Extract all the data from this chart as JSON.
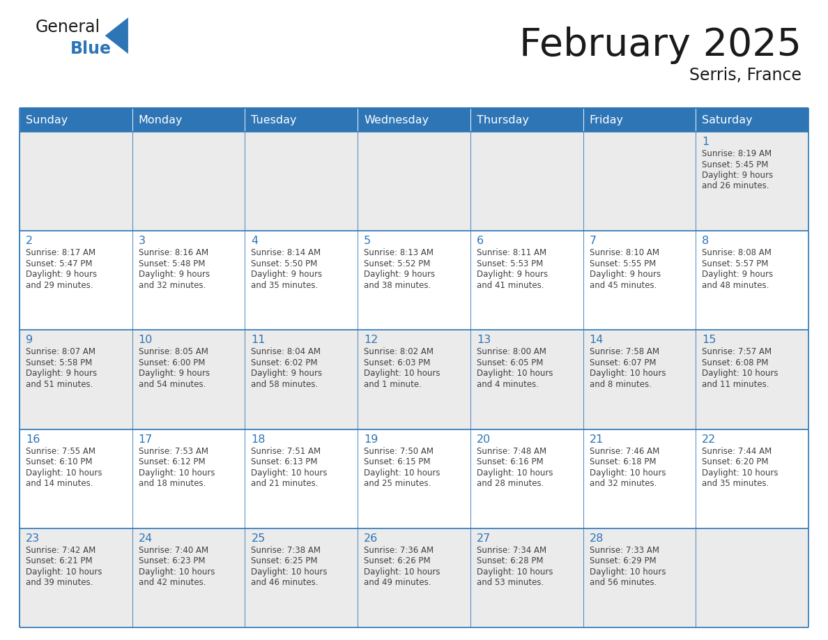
{
  "title": "February 2025",
  "subtitle": "Serris, France",
  "header_bg": "#2E75B6",
  "header_text": "#FFFFFF",
  "cell_bg_light": "#EBEBEB",
  "cell_bg_white": "#FFFFFF",
  "cell_border": "#2E75B6",
  "day_number_color": "#2E75B6",
  "text_color": "#404040",
  "days_of_week": [
    "Sunday",
    "Monday",
    "Tuesday",
    "Wednesday",
    "Thursday",
    "Friday",
    "Saturday"
  ],
  "logo_general_color": "#1a1a1a",
  "logo_blue_color": "#2E75B6",
  "calendar": [
    [
      null,
      null,
      null,
      null,
      null,
      null,
      {
        "day": 1,
        "sunrise": "8:19 AM",
        "sunset": "5:45 PM",
        "daylight": "9 hours\nand 26 minutes."
      }
    ],
    [
      {
        "day": 2,
        "sunrise": "8:17 AM",
        "sunset": "5:47 PM",
        "daylight": "9 hours\nand 29 minutes."
      },
      {
        "day": 3,
        "sunrise": "8:16 AM",
        "sunset": "5:48 PM",
        "daylight": "9 hours\nand 32 minutes."
      },
      {
        "day": 4,
        "sunrise": "8:14 AM",
        "sunset": "5:50 PM",
        "daylight": "9 hours\nand 35 minutes."
      },
      {
        "day": 5,
        "sunrise": "8:13 AM",
        "sunset": "5:52 PM",
        "daylight": "9 hours\nand 38 minutes."
      },
      {
        "day": 6,
        "sunrise": "8:11 AM",
        "sunset": "5:53 PM",
        "daylight": "9 hours\nand 41 minutes."
      },
      {
        "day": 7,
        "sunrise": "8:10 AM",
        "sunset": "5:55 PM",
        "daylight": "9 hours\nand 45 minutes."
      },
      {
        "day": 8,
        "sunrise": "8:08 AM",
        "sunset": "5:57 PM",
        "daylight": "9 hours\nand 48 minutes."
      }
    ],
    [
      {
        "day": 9,
        "sunrise": "8:07 AM",
        "sunset": "5:58 PM",
        "daylight": "9 hours\nand 51 minutes."
      },
      {
        "day": 10,
        "sunrise": "8:05 AM",
        "sunset": "6:00 PM",
        "daylight": "9 hours\nand 54 minutes."
      },
      {
        "day": 11,
        "sunrise": "8:04 AM",
        "sunset": "6:02 PM",
        "daylight": "9 hours\nand 58 minutes."
      },
      {
        "day": 12,
        "sunrise": "8:02 AM",
        "sunset": "6:03 PM",
        "daylight": "10 hours\nand 1 minute."
      },
      {
        "day": 13,
        "sunrise": "8:00 AM",
        "sunset": "6:05 PM",
        "daylight": "10 hours\nand 4 minutes."
      },
      {
        "day": 14,
        "sunrise": "7:58 AM",
        "sunset": "6:07 PM",
        "daylight": "10 hours\nand 8 minutes."
      },
      {
        "day": 15,
        "sunrise": "7:57 AM",
        "sunset": "6:08 PM",
        "daylight": "10 hours\nand 11 minutes."
      }
    ],
    [
      {
        "day": 16,
        "sunrise": "7:55 AM",
        "sunset": "6:10 PM",
        "daylight": "10 hours\nand 14 minutes."
      },
      {
        "day": 17,
        "sunrise": "7:53 AM",
        "sunset": "6:12 PM",
        "daylight": "10 hours\nand 18 minutes."
      },
      {
        "day": 18,
        "sunrise": "7:51 AM",
        "sunset": "6:13 PM",
        "daylight": "10 hours\nand 21 minutes."
      },
      {
        "day": 19,
        "sunrise": "7:50 AM",
        "sunset": "6:15 PM",
        "daylight": "10 hours\nand 25 minutes."
      },
      {
        "day": 20,
        "sunrise": "7:48 AM",
        "sunset": "6:16 PM",
        "daylight": "10 hours\nand 28 minutes."
      },
      {
        "day": 21,
        "sunrise": "7:46 AM",
        "sunset": "6:18 PM",
        "daylight": "10 hours\nand 32 minutes."
      },
      {
        "day": 22,
        "sunrise": "7:44 AM",
        "sunset": "6:20 PM",
        "daylight": "10 hours\nand 35 minutes."
      }
    ],
    [
      {
        "day": 23,
        "sunrise": "7:42 AM",
        "sunset": "6:21 PM",
        "daylight": "10 hours\nand 39 minutes."
      },
      {
        "day": 24,
        "sunrise": "7:40 AM",
        "sunset": "6:23 PM",
        "daylight": "10 hours\nand 42 minutes."
      },
      {
        "day": 25,
        "sunrise": "7:38 AM",
        "sunset": "6:25 PM",
        "daylight": "10 hours\nand 46 minutes."
      },
      {
        "day": 26,
        "sunrise": "7:36 AM",
        "sunset": "6:26 PM",
        "daylight": "10 hours\nand 49 minutes."
      },
      {
        "day": 27,
        "sunrise": "7:34 AM",
        "sunset": "6:28 PM",
        "daylight": "10 hours\nand 53 minutes."
      },
      {
        "day": 28,
        "sunrise": "7:33 AM",
        "sunset": "6:29 PM",
        "daylight": "10 hours\nand 56 minutes."
      },
      null
    ]
  ]
}
